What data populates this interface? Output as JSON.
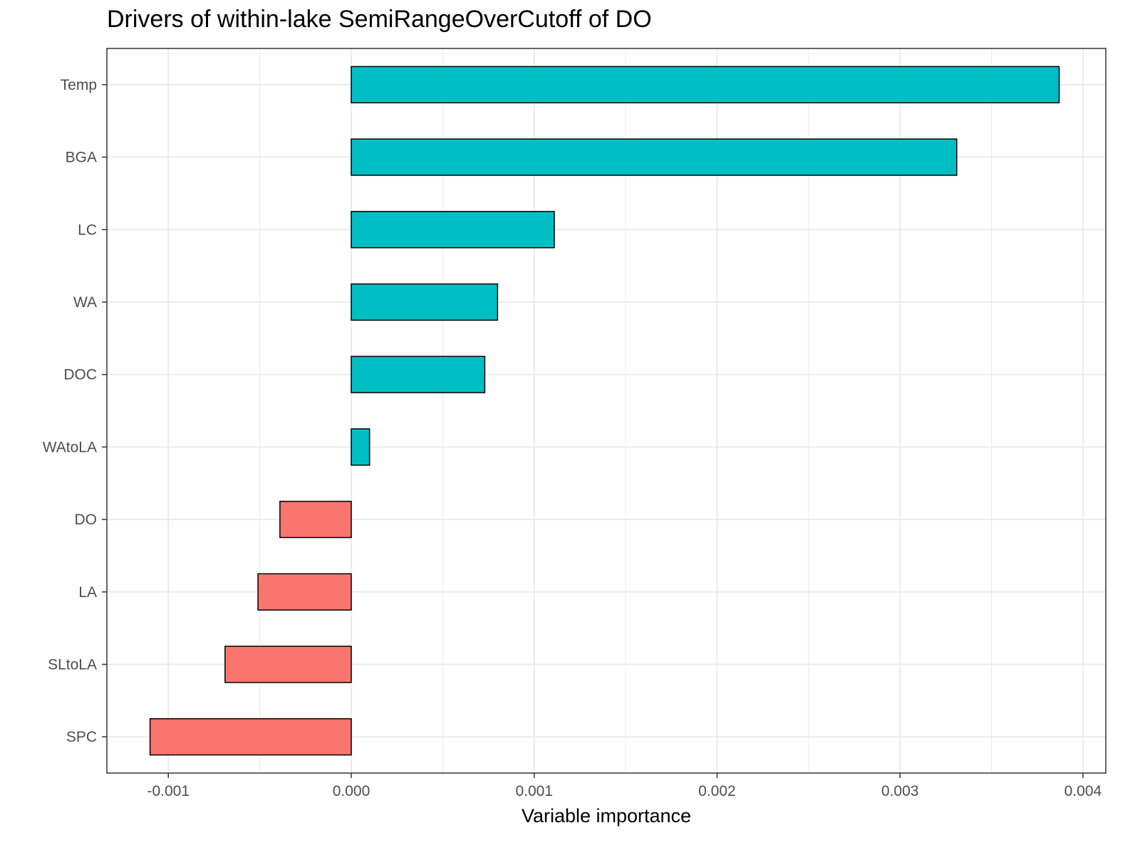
{
  "chart_data": {
    "type": "bar",
    "orientation": "horizontal",
    "title": "Drivers of within-lake SemiRangeOverCutoff of DO",
    "xlabel": "Variable importance",
    "ylabel": "",
    "categories": [
      "Temp",
      "BGA",
      "LC",
      "WA",
      "DOC",
      "WAtoLA",
      "DO",
      "LA",
      "SLtoLA",
      "SPC"
    ],
    "values": [
      0.00387,
      0.00331,
      0.00111,
      0.0008,
      0.00073,
      0.0001,
      -0.00039,
      -0.00051,
      -0.00069,
      -0.0011
    ],
    "xticks": [
      -0.001,
      0.0,
      0.001,
      0.002,
      0.003,
      0.004
    ],
    "xtick_labels": [
      "-0.001",
      "0.000",
      "0.001",
      "0.002",
      "0.003",
      "0.004"
    ],
    "xlim": [
      -0.001336,
      0.004125
    ],
    "grid": true,
    "legend": "none",
    "colors": {
      "positive": "#00BFC4",
      "negative": "#F8766D",
      "bar_outline": "#000000",
      "grid": "#ebebeb",
      "panel_border": "#333333"
    }
  }
}
